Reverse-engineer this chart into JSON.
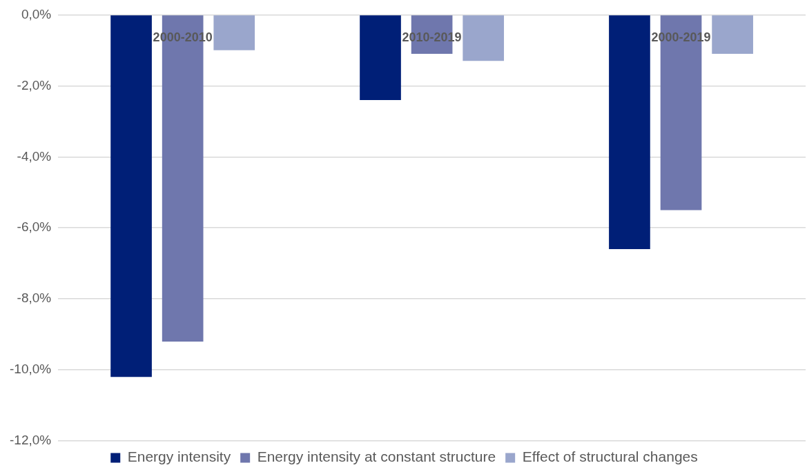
{
  "chart_data": {
    "type": "bar",
    "categories": [
      "2000-2010",
      "2010-2019",
      "2000-2019"
    ],
    "series": [
      {
        "name": "Energy intensity",
        "color": "#001f77",
        "values": [
          -10.2,
          -2.4,
          -6.6
        ]
      },
      {
        "name": "Energy intensity at constant structure",
        "color": "#6f77ad",
        "values": [
          -9.2,
          -1.1,
          -5.5
        ]
      },
      {
        "name": "Effect of structural changes",
        "color": "#9aa6cc",
        "values": [
          -1.0,
          -1.3,
          -1.1
        ]
      }
    ],
    "ylim": [
      -12,
      0
    ],
    "yticks": [
      {
        "value": -12,
        "label": "-12,0%"
      },
      {
        "value": -10,
        "label": "-10,0%"
      },
      {
        "value": -8,
        "label": "-8,0%"
      },
      {
        "value": -6,
        "label": "-6,0%"
      },
      {
        "value": -4,
        "label": "-4,0%"
      },
      {
        "value": -2,
        "label": "-2,0%"
      },
      {
        "value": 0,
        "label": "0,0%"
      }
    ],
    "grid": "y",
    "legend": "bottom"
  }
}
